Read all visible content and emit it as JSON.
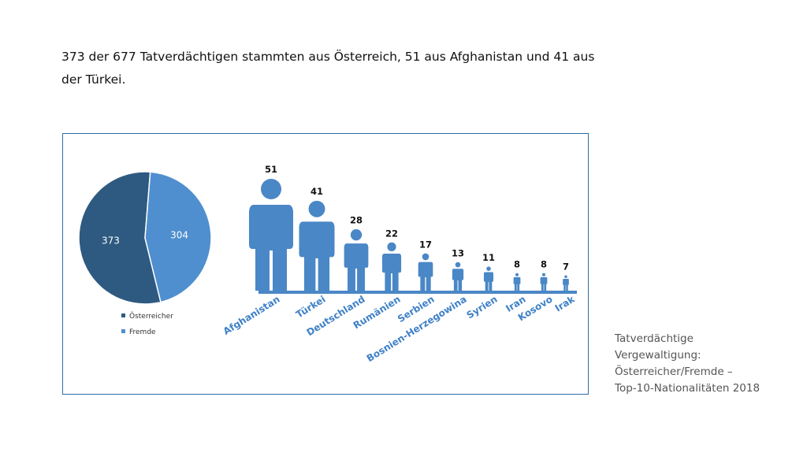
{
  "intro_text": "373 der 677 Tatverdächtigen stammten aus Österreich, 51 aus Afghanistan und 41 aus der Türkei.",
  "caption": {
    "lines": [
      "Tatverdächtige",
      "Vergewaltigung:",
      "Österreicher/Fremde –",
      "Top-10-Nationalitäten 2018"
    ]
  },
  "colors": {
    "oesterreicher": "#2e5a81",
    "fremde": "#4f8fcf",
    "figure": "#4a87c6",
    "country_label": "#3f81c7",
    "frame": "#2d6da8"
  },
  "chart_data": [
    {
      "type": "pie",
      "labels": [
        "Österreicher",
        "Fremde"
      ],
      "values": [
        373,
        304
      ],
      "data_labels": [
        "373",
        "304"
      ],
      "legend": "bottom"
    },
    {
      "type": "bar",
      "style": "pictogram",
      "categories": [
        "Afghanistan",
        "Türkei",
        "Deutschland",
        "Rumänien",
        "Serbien",
        "Bosnien-Herzegowina",
        "Syrien",
        "Iran",
        "Kosovo",
        "Irak"
      ],
      "values": [
        51,
        41,
        28,
        22,
        17,
        13,
        11,
        8,
        8,
        7
      ]
    }
  ]
}
